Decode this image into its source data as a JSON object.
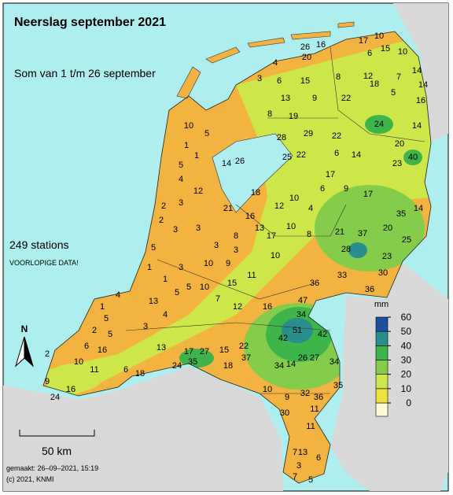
{
  "header": {
    "title": "Neerslag september 2021",
    "subtitle": "Som van 1 t/m 26 september"
  },
  "info": {
    "stations": "249 stations",
    "note": "VOORLOPIGE DATA!"
  },
  "north": "N",
  "scale": "50 km",
  "footer": {
    "made": "gemaakt: 26–09–2021, 15:19",
    "copyright": "(c) 2021, KNMI"
  },
  "legend": {
    "unit": "mm",
    "ticks": [
      0,
      10,
      20,
      30,
      40,
      50,
      60
    ],
    "colors": [
      "#fffbd2",
      "#f0e040",
      "#cde64a",
      "#84cc4a",
      "#3db54a",
      "#2a8f8c",
      "#1c4f9e"
    ]
  },
  "stations": [
    26,
    16,
    20,
    17,
    10,
    6,
    15,
    10,
    4,
    3,
    6,
    15,
    8,
    12,
    7,
    14,
    14,
    18,
    5,
    13,
    9,
    22,
    16,
    8,
    19,
    24,
    14,
    28,
    29,
    22,
    20,
    40,
    23,
    14,
    6,
    22,
    25,
    10,
    5,
    1,
    1,
    5,
    14,
    26,
    4,
    12,
    3,
    2,
    2,
    3,
    3,
    21,
    18,
    12,
    10,
    4,
    6,
    9,
    17,
    17,
    16,
    13,
    17,
    10,
    8,
    21,
    37,
    20,
    35,
    14,
    25,
    28,
    23,
    33,
    30,
    36,
    3,
    3,
    10,
    9,
    3,
    5,
    1,
    1,
    5,
    13,
    4,
    1,
    5,
    2,
    5,
    3,
    4,
    5,
    7,
    12,
    16,
    47,
    36,
    34,
    51,
    42,
    42,
    6,
    10,
    11,
    16,
    2,
    6,
    18,
    13,
    17,
    27,
    35,
    24,
    18,
    15,
    22,
    37,
    34,
    14,
    26,
    27,
    34,
    32,
    35,
    36,
    10,
    9,
    30,
    11,
    11,
    7,
    13,
    6,
    3,
    7,
    5,
    9,
    16,
    24,
    8,
    10,
    11,
    15,
    10
  ]
}
